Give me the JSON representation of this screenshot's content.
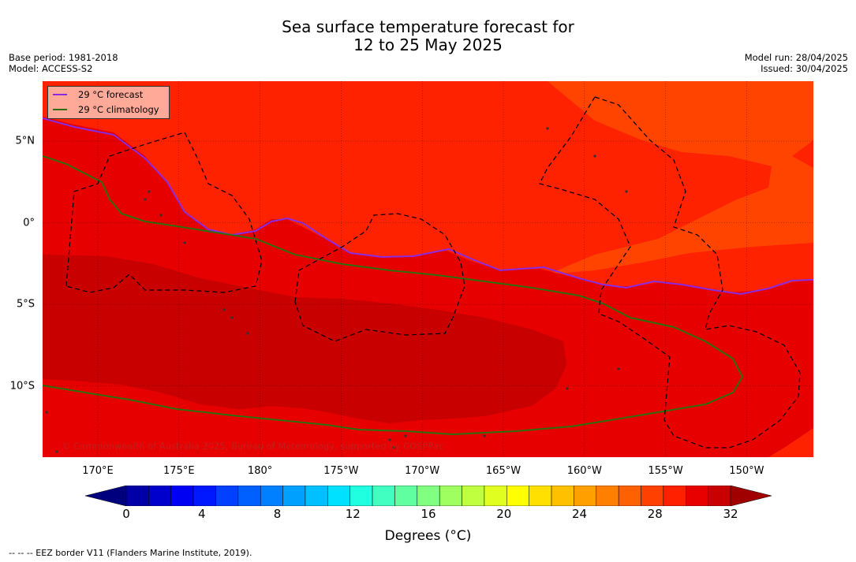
{
  "title": {
    "line1": "Sea surface temperature forecast for",
    "line2": "12 to 25 May 2025"
  },
  "meta": {
    "base_period": "Base period: 1981-2018",
    "model": "Model: ACCESS-S2",
    "model_run": "Model run: 28/04/2025",
    "issued": "Issued: 30/04/2025"
  },
  "map": {
    "lon_ticks": [
      "170°E",
      "175°E",
      "180°",
      "175°W",
      "170°W",
      "165°W",
      "160°W",
      "155°W",
      "150°W"
    ],
    "lat_ticks": [
      "5°N",
      "0°",
      "5°S",
      "10°S"
    ],
    "credit": "© Commonwealth of Australia 2025, Bureau of Meteorology, supported by COSPPac",
    "colors": {
      "warm_28_29": "#ff2200",
      "warm_27_28": "#ff4400",
      "hot_29_30": "#e60000",
      "hot_30_31": "#c80000",
      "forecast_line": "#8a2be2",
      "climatology_line": "#2e6e0e",
      "eez_border": "#000000"
    }
  },
  "legend": {
    "forecast": "29 °C  forecast",
    "climatology": "29 °C  climatology"
  },
  "colorbar": {
    "ticks": [
      "0",
      "4",
      "8",
      "12",
      "16",
      "20",
      "24",
      "28",
      "32"
    ],
    "label": "Degrees (°C)",
    "colors": [
      "#00007f",
      "#0000a6",
      "#0000cc",
      "#0000f2",
      "#0018ff",
      "#0040ff",
      "#0060ff",
      "#0080ff",
      "#00a0ff",
      "#00c0ff",
      "#00e0ff",
      "#20ffe0",
      "#40ffc0",
      "#60ffa0",
      "#80ff80",
      "#a0ff60",
      "#c0ff40",
      "#e0ff20",
      "#ffff00",
      "#ffe000",
      "#ffc000",
      "#ffa000",
      "#ff8000",
      "#ff6000",
      "#ff4000",
      "#ff2000",
      "#e80000",
      "#c80000",
      "#a00000"
    ]
  },
  "eez_note": "--  --  -- EEZ border V11 (Flanders Marine Institute, 2019)."
}
